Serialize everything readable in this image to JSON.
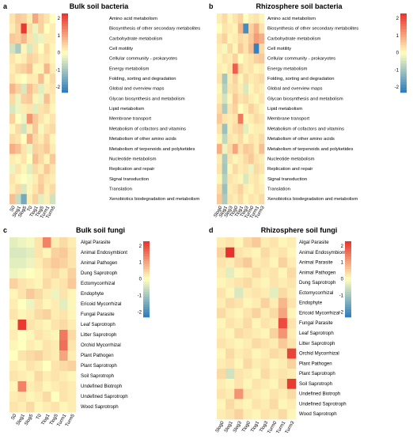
{
  "colors": {
    "high": "#e8312c",
    "mid": "#ffffbf",
    "low": "#2b7bbf",
    "label": "#000000"
  },
  "chart_data": [
    {
      "type": "heatmap",
      "panel_letter": "a",
      "title": "Bulk soil bacteria",
      "columns": [
        "S0",
        "Slog1",
        "Slog5",
        "T0",
        "Tlog1",
        "Tlog5",
        "Turm1",
        "Turm5"
      ],
      "rows": [
        "Amino acid metabolism",
        "Biosynthesis of other secondary metabolites",
        "Carbohydrate metabolism",
        "Cell motility",
        "Cellular community - prokaryotes",
        "Energy metabolism",
        "Folding, sorting and degradation",
        "Global and overview maps",
        "Glycan biosynthesis and metabolism",
        "Lipid metabolism",
        "Membrane transport",
        "Metabolism of cofactors and vitamins",
        "Metabolism of other amino acids",
        "Metabolism of terpenoids and polyketides",
        "Nucleotide metabolism",
        "Replication and repair",
        "Signal transduction",
        "Translation",
        "Xenobiotics biodegradation and metabolism"
      ],
      "values": [
        [
          0.3,
          0.6,
          0.5,
          0.2,
          1.0,
          0.5,
          0.3,
          0.0
        ],
        [
          0.2,
          0.5,
          2.2,
          0.4,
          -0.2,
          0.5,
          0.0,
          0.2
        ],
        [
          0.6,
          0.5,
          0.8,
          0.3,
          -0.3,
          -0.2,
          0.2,
          0.2
        ],
        [
          -0.5,
          -0.9,
          0.1,
          -0.4,
          0.3,
          0.0,
          0.4,
          0.1
        ],
        [
          0.3,
          0.1,
          0.2,
          0.5,
          0.4,
          0.2,
          0.3,
          0.1
        ],
        [
          0.2,
          0.4,
          0.5,
          0.7,
          0.1,
          0.1,
          0.8,
          0.2
        ],
        [
          0.3,
          0.1,
          0.0,
          0.2,
          0.2,
          0.7,
          0.1,
          0.4
        ],
        [
          0.8,
          0.5,
          -0.4,
          0.7,
          0.4,
          -0.3,
          0.2,
          0.3
        ],
        [
          0.4,
          -0.2,
          0.5,
          0.6,
          0.1,
          -0.2,
          0.7,
          0.2
        ],
        [
          -0.4,
          -0.2,
          0.2,
          0.3,
          -0.3,
          0.3,
          0.4,
          0.1
        ],
        [
          0.5,
          0.0,
          -0.2,
          1.2,
          0.6,
          0.3,
          0.1,
          0.3
        ],
        [
          0.1,
          0.4,
          -0.5,
          0.2,
          0.6,
          -0.1,
          0.3,
          0.4
        ],
        [
          0.4,
          0.3,
          0.0,
          0.9,
          0.4,
          0.2,
          0.5,
          0.1
        ],
        [
          0.9,
          0.7,
          0.3,
          -0.2,
          0.5,
          0.4,
          0.6,
          0.2
        ],
        [
          0.2,
          0.1,
          0.3,
          0.0,
          0.7,
          0.4,
          0.1,
          0.6
        ],
        [
          -0.2,
          0.3,
          0.1,
          -0.3,
          0.4,
          0.2,
          0.6,
          0.3
        ],
        [
          0.3,
          0.1,
          0.0,
          -0.1,
          0.2,
          0.5,
          0.3,
          0.2
        ],
        [
          0.2,
          0.4,
          -0.4,
          0.1,
          0.3,
          0.6,
          0.2,
          0.4
        ],
        [
          0.7,
          -0.6,
          -1.5,
          0.2,
          0.5,
          -0.3,
          0.2,
          -0.5
        ]
      ],
      "legend_ticks": [
        2,
        1,
        0,
        -1,
        -2
      ],
      "zlim": [
        -2.3,
        2.3
      ]
    },
    {
      "type": "heatmap",
      "panel_letter": "b",
      "title": "Rhizosphere soil bacteria",
      "columns": [
        "Slog0",
        "Slog1",
        "Slog3",
        "Tlog0",
        "Tlog1",
        "Tlog3",
        "Turm0",
        "Turm1",
        "Turm3"
      ],
      "rows": [
        "Amino acid metabolism",
        "Biosynthesis of other secondary metabolites",
        "Carbohydrate metabolism",
        "Cell motility",
        "Cellular community - prokaryotes",
        "Energy metabolism",
        "Folding, sorting and degradation",
        "Global and overview maps",
        "Glycan biosynthesis and metabolism",
        "Lipid metabolism",
        "Membrane transport",
        "Metabolism of cofactors and vitamins",
        "Metabolism of other amino acids",
        "Metabolism of terpenoids and polyketides",
        "Nucleotide metabolism",
        "Replication and repair",
        "Signal transduction",
        "Translation",
        "Xenobiotics biodegradation and metabolism"
      ],
      "values": [
        [
          0.2,
          0.4,
          0.1,
          0.3,
          0.5,
          0.0,
          0.2,
          0.3,
          0.1
        ],
        [
          0.0,
          0.3,
          0.2,
          0.1,
          0.8,
          -2.0,
          0.5,
          0.9,
          0.3
        ],
        [
          0.3,
          0.5,
          0.1,
          0.2,
          0.4,
          0.3,
          0.6,
          1.1,
          0.9
        ],
        [
          0.2,
          -0.1,
          0.4,
          0.1,
          0.6,
          0.3,
          0.7,
          -2.2,
          0.4
        ],
        [
          0.1,
          0.3,
          0.2,
          0.5,
          0.0,
          0.2,
          0.3,
          0.5,
          0.6
        ],
        [
          0.2,
          0.1,
          0.3,
          1.8,
          0.4,
          0.2,
          0.3,
          0.1,
          0.2
        ],
        [
          0.3,
          -1.0,
          0.2,
          0.5,
          0.1,
          0.4,
          0.2,
          0.3,
          0.4
        ],
        [
          0.1,
          -0.8,
          0.3,
          0.4,
          0.2,
          -0.4,
          0.1,
          0.3,
          0.2
        ],
        [
          0.2,
          -0.5,
          0.1,
          0.6,
          0.3,
          0.4,
          0.2,
          0.1,
          0.3
        ],
        [
          0.4,
          -0.9,
          0.3,
          0.5,
          0.0,
          0.2,
          0.5,
          0.3,
          0.1
        ],
        [
          0.6,
          0.3,
          0.2,
          0.3,
          1.5,
          0.1,
          0.2,
          0.4,
          0.3
        ],
        [
          0.3,
          -1.1,
          0.2,
          0.4,
          0.5,
          -0.3,
          0.1,
          0.2,
          0.2
        ],
        [
          0.1,
          -0.7,
          0.3,
          0.2,
          0.4,
          0.1,
          0.3,
          0.2,
          0.4
        ],
        [
          0.9,
          -0.2,
          0.4,
          1.0,
          0.3,
          0.6,
          0.5,
          0.2,
          0.7
        ],
        [
          0.2,
          -0.9,
          0.3,
          0.1,
          0.2,
          0.4,
          0.6,
          0.3,
          0.2
        ],
        [
          0.3,
          -1.0,
          0.1,
          0.4,
          0.2,
          0.3,
          -0.2,
          0.4,
          0.3
        ],
        [
          0.1,
          -0.8,
          0.3,
          0.2,
          0.1,
          -0.4,
          0.2,
          0.3,
          0.1
        ],
        [
          0.4,
          -1.1,
          0.2,
          0.3,
          0.5,
          0.2,
          0.1,
          0.3,
          0.2
        ],
        [
          0.6,
          -0.9,
          0.3,
          0.2,
          0.4,
          0.1,
          0.3,
          0.2,
          0.4
        ]
      ],
      "legend_ticks": [
        2,
        1,
        0,
        -1,
        -2
      ],
      "zlim": [
        -2.3,
        2.3
      ]
    },
    {
      "type": "heatmap",
      "panel_letter": "c",
      "title": "Bulk soil fungi",
      "columns": [
        "S0",
        "Slog1",
        "Slog5",
        "T0",
        "Tlog1",
        "Tlog5",
        "Turm1",
        "Turm5"
      ],
      "rows": [
        "Algal Parasite",
        "Animal Endosymbiont",
        "Animal Pathogen",
        "Dung Saprotroph",
        "Ectomycorrhizal",
        "Endophyte",
        "Ericoid Mycorrhizal",
        "Fungal Parasite",
        "Leaf Saprotroph",
        "Litter Saprotroph",
        "Orchid Mycorrhizal",
        "Plant Pathogen",
        "Plant Saprotroph",
        "Soil Saprotroph",
        "Undefined Biotroph",
        "Undefined Saprotroph",
        "Wood Saprotroph"
      ],
      "values": [
        [
          -0.3,
          -0.2,
          -0.1,
          0.3,
          1.4,
          0.2,
          0.4,
          0.2
        ],
        [
          -0.4,
          -0.4,
          -0.3,
          0.3,
          0.1,
          0.5,
          0.6,
          0.3
        ],
        [
          -0.3,
          -0.3,
          -0.2,
          0.2,
          0.4,
          0.6,
          0.5,
          0.3
        ],
        [
          -0.2,
          -0.1,
          0.0,
          0.1,
          0.3,
          0.4,
          0.2,
          0.5
        ],
        [
          0.5,
          0.3,
          0.2,
          0.1,
          0.4,
          0.2,
          0.3,
          0.6
        ],
        [
          0.1,
          0.3,
          0.6,
          0.4,
          0.2,
          -0.2,
          0.3,
          0.1
        ],
        [
          0.2,
          0.0,
          -0.2,
          0.3,
          0.1,
          0.2,
          -0.3,
          0.1
        ],
        [
          0.3,
          0.1,
          0.2,
          0.4,
          0.5,
          0.2,
          0.3,
          0.1
        ],
        [
          0.1,
          2.2,
          0.3,
          0.2,
          0.1,
          0.3,
          0.4,
          0.2
        ],
        [
          0.2,
          0.0,
          0.1,
          0.3,
          0.2,
          0.1,
          1.5,
          0.4
        ],
        [
          0.1,
          0.0,
          0.2,
          0.1,
          0.3,
          0.2,
          1.6,
          0.3
        ],
        [
          0.0,
          0.3,
          0.4,
          0.5,
          0.3,
          0.2,
          1.0,
          0.2
        ],
        [
          0.2,
          0.1,
          0.3,
          0.2,
          0.0,
          0.3,
          0.4,
          0.5
        ],
        [
          0.3,
          0.2,
          0.1,
          0.4,
          0.2,
          0.3,
          0.2,
          0.1
        ],
        [
          0.1,
          1.4,
          0.2,
          0.3,
          0.1,
          0.2,
          0.3,
          0.2
        ],
        [
          0.2,
          0.3,
          0.1,
          0.2,
          0.4,
          0.0,
          0.3,
          0.2
        ],
        [
          0.3,
          0.2,
          0.4,
          0.1,
          0.2,
          0.3,
          0.1,
          0.2
        ]
      ],
      "legend_ticks": [
        2,
        1,
        0,
        -1,
        -2
      ],
      "zlim": [
        -2.3,
        2.3
      ]
    },
    {
      "type": "heatmap",
      "panel_letter": "d",
      "title": "Rhizosphere soil fungi",
      "columns": [
        "Slog0",
        "Slog1",
        "Slog3",
        "Tlog0",
        "Tlog1",
        "Tlog3",
        "Turm0",
        "Turm1",
        "Turm3"
      ],
      "rows": [
        "Algal Parasite",
        "Animal Endosymbiont",
        "Animal Parasite",
        "Animal Pathogen",
        "Dung Saprotroph",
        "Ectomycorrhizal",
        "Endophyte",
        "Ericoid Mycorrhizal",
        "Fungal Parasite",
        "Leaf Saprotroph",
        "Litter Saprotroph",
        "Orchid Mycorrhizal",
        "Plant Pathogen",
        "Plant Saprotroph",
        "Soil Saprotroph",
        "Undefined Biotroph",
        "Undefined Saprotroph",
        "Wood Saprotroph"
      ],
      "values": [
        [
          0.2,
          0.3,
          0.1,
          0.4,
          0.6,
          0.2,
          0.3,
          0.1,
          0.2
        ],
        [
          0.5,
          2.3,
          0.3,
          0.2,
          0.1,
          0.4,
          0.2,
          0.3,
          0.1
        ],
        [
          0.3,
          0.2,
          0.4,
          0.6,
          0.2,
          0.3,
          0.1,
          0.5,
          0.2
        ],
        [
          0.2,
          -0.3,
          0.1,
          0.2,
          0.4,
          0.2,
          0.3,
          0.1,
          0.4
        ],
        [
          0.1,
          0.2,
          0.3,
          0.4,
          0.2,
          0.1,
          0.3,
          0.2,
          0.3
        ],
        [
          0.3,
          0.1,
          -0.4,
          0.2,
          0.3,
          0.2,
          -0.3,
          0.4,
          0.2
        ],
        [
          0.2,
          0.4,
          0.3,
          0.1,
          0.2,
          0.5,
          0.2,
          0.8,
          0.3
        ],
        [
          0.4,
          0.2,
          0.1,
          0.3,
          0.5,
          0.2,
          0.4,
          1.0,
          0.1
        ],
        [
          0.1,
          0.3,
          0.2,
          0.4,
          0.1,
          0.3,
          0.2,
          2.0,
          0.3
        ],
        [
          0.2,
          0.1,
          0.4,
          0.3,
          0.2,
          0.1,
          0.5,
          1.2,
          0.2
        ],
        [
          0.3,
          0.2,
          0.1,
          0.2,
          0.4,
          0.3,
          0.2,
          0.6,
          0.3
        ],
        [
          0.1,
          0.4,
          0.2,
          0.3,
          0.1,
          0.2,
          0.4,
          0.3,
          2.1
        ],
        [
          0.2,
          0.3,
          0.1,
          0.4,
          0.2,
          0.3,
          0.1,
          0.2,
          0.5
        ],
        [
          0.4,
          -0.5,
          0.3,
          0.2,
          0.1,
          0.4,
          0.2,
          0.3,
          0.2
        ],
        [
          0.2,
          0.1,
          0.3,
          0.1,
          0.3,
          0.2,
          0.1,
          0.4,
          2.2
        ],
        [
          0.3,
          0.2,
          1.2,
          0.3,
          0.2,
          0.1,
          0.3,
          0.2,
          0.4
        ],
        [
          0.1,
          0.4,
          0.2,
          0.1,
          0.3,
          0.2,
          0.4,
          0.1,
          0.2
        ],
        [
          0.2,
          0.3,
          0.5,
          0.2,
          0.1,
          0.3,
          0.2,
          0.4,
          0.1
        ]
      ],
      "legend_ticks": [
        2,
        1,
        0,
        -1,
        -2
      ],
      "zlim": [
        -2.3,
        2.3
      ]
    }
  ]
}
